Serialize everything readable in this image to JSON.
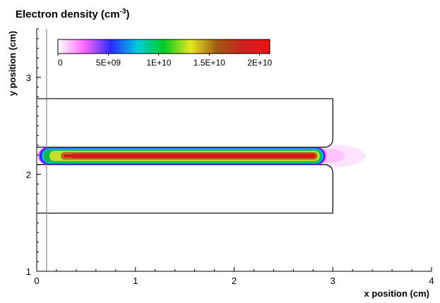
{
  "chart_data": {
    "type": "contour",
    "title": "Electron density (cm",
    "title_superscript": "-3",
    "title_suffix": ")",
    "xlabel": "x position (cm)",
    "ylabel": "y position (cm)",
    "xlim": [
      0,
      4
    ],
    "ylim": [
      1,
      3.5
    ],
    "x_ticks": [
      "0",
      "1",
      "2",
      "3",
      "4"
    ],
    "y_ticks": [
      "1",
      "2",
      "3"
    ],
    "x_tick_values": [
      0,
      1,
      2,
      3,
      4
    ],
    "y_tick_values": [
      1,
      2,
      3
    ],
    "colorbar": {
      "min": 0,
      "max": 21000000000,
      "tick_labels": [
        "0",
        "5E+09",
        "1E+10",
        "1.5E+10",
        "2E+10"
      ],
      "tick_values": [
        0,
        5000000000,
        10000000000,
        15000000000,
        20000000000
      ],
      "colors": [
        "#ffffff",
        "#ff66ff",
        "#2a2aff",
        "#00ccdd",
        "#00cc22",
        "#e8e822",
        "#a05a10",
        "#cc2020",
        "#ee1111"
      ]
    },
    "geometry": {
      "vertical_line_x": 0.1,
      "upper_electrode": {
        "x_range": [
          0,
          3
        ],
        "y_range": [
          2.28,
          2.78
        ]
      },
      "lower_electrode": {
        "x_range": [
          0,
          3
        ],
        "y_range": [
          1.6,
          2.1
        ]
      },
      "channel": {
        "x_range": [
          0,
          2.95
        ],
        "y_range": [
          2.1,
          2.28
        ]
      }
    },
    "density_peak": {
      "x_range": [
        0.2,
        2.85
      ],
      "y_center": 2.19,
      "value_approx": 20000000000
    }
  }
}
